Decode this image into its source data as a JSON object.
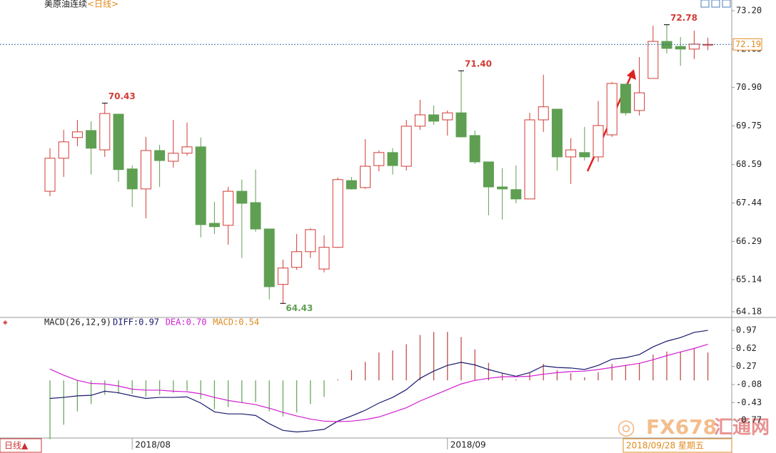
{
  "header": {
    "title": "美原油连续",
    "period": "<日线>"
  },
  "chart_data": [
    {
      "type": "candlestick",
      "categories": [
        null,
        null,
        null,
        null,
        null,
        null,
        "2018/08",
        null,
        null,
        null,
        null,
        null,
        null,
        null,
        null,
        null,
        null,
        null,
        null,
        null,
        null,
        null,
        null,
        null,
        null,
        null,
        null,
        null,
        null,
        "2018/09",
        null,
        null,
        null,
        null,
        null,
        null,
        null,
        null,
        null,
        null,
        null,
        null,
        null,
        null,
        null,
        null,
        null,
        null,
        null
      ],
      "open": [
        67.79,
        68.78,
        69.4,
        69.61,
        69.03,
        70.1,
        68.46,
        67.86,
        69.01,
        68.69,
        68.93,
        69.12,
        66.83,
        66.77,
        67.79,
        67.45,
        66.66,
        65.0,
        65.51,
        65.98,
        65.46,
        66.11,
        68.11,
        67.9,
        68.56,
        68.95,
        68.54,
        69.74,
        70.08,
        69.93,
        70.14,
        69.46,
        68.67,
        67.92,
        67.84,
        67.56,
        69.93,
        70.25,
        68.82,
        68.95,
        68.82,
        69.48,
        71.0,
        70.21,
        71.17,
        72.28,
        72.13,
        72.05,
        72.17
      ],
      "high": [
        69.08,
        69.63,
        69.93,
        69.89,
        70.43,
        70.1,
        68.56,
        69.42,
        69.18,
        69.93,
        69.85,
        69.4,
        67.47,
        67.92,
        68.14,
        68.44,
        66.66,
        65.74,
        66.51,
        66.68,
        66.47,
        68.2,
        68.22,
        69.35,
        69.01,
        69.08,
        69.93,
        70.53,
        70.36,
        70.21,
        71.4,
        69.61,
        68.67,
        68.48,
        68.56,
        70.14,
        71.28,
        70.25,
        69.38,
        69.72,
        70.49,
        71.06,
        71.0,
        71.81,
        72.75,
        72.78,
        72.41,
        72.6,
        72.39
      ],
      "low": [
        67.64,
        68.22,
        69.14,
        68.29,
        68.82,
        68.07,
        67.32,
        66.98,
        67.92,
        68.5,
        68.86,
        66.41,
        66.51,
        66.19,
        65.79,
        66.58,
        64.55,
        64.43,
        65.44,
        65.79,
        65.36,
        66.09,
        67.84,
        67.86,
        68.39,
        68.29,
        68.41,
        69.63,
        69.78,
        69.46,
        69.4,
        68.61,
        67.07,
        66.94,
        67.43,
        67.56,
        69.57,
        68.41,
        68.01,
        68.71,
        68.67,
        69.42,
        70.06,
        70.06,
        71.17,
        71.92,
        71.55,
        71.75,
        72.02
      ],
      "close": [
        68.78,
        69.27,
        69.57,
        69.08,
        70.12,
        68.44,
        67.86,
        69.01,
        68.71,
        68.93,
        69.12,
        66.79,
        66.73,
        67.79,
        67.43,
        66.66,
        64.93,
        65.49,
        65.98,
        66.64,
        66.11,
        68.14,
        67.86,
        68.54,
        68.95,
        68.56,
        69.74,
        70.08,
        69.89,
        70.14,
        69.42,
        68.67,
        67.92,
        67.86,
        67.56,
        69.93,
        70.32,
        68.82,
        69.03,
        68.82,
        69.76,
        71.02,
        70.14,
        70.74,
        72.28,
        72.07,
        72.05,
        72.2,
        72.19
      ],
      "high_labels": [
        null,
        null,
        null,
        null,
        "70.43",
        null,
        null,
        null,
        null,
        null,
        null,
        null,
        null,
        null,
        null,
        null,
        null,
        null,
        null,
        null,
        null,
        null,
        null,
        null,
        null,
        null,
        null,
        null,
        null,
        null,
        "71.40",
        null,
        null,
        null,
        null,
        null,
        null,
        null,
        null,
        null,
        null,
        null,
        null,
        null,
        null,
        "72.78",
        null,
        null,
        null
      ],
      "low_labels": [
        null,
        null,
        null,
        null,
        null,
        null,
        null,
        null,
        null,
        null,
        null,
        null,
        null,
        null,
        null,
        null,
        null,
        "64.43",
        null,
        null,
        null,
        null,
        null,
        null,
        null,
        null,
        null,
        null,
        null,
        null,
        null,
        null,
        null,
        null,
        null,
        null,
        null,
        null,
        null,
        null,
        null,
        null,
        null,
        null,
        null,
        null,
        null,
        null,
        null
      ],
      "last_price": 72.19,
      "up_color": "#d23b35",
      "down_color": "#5f9f52",
      "ylim": [
        64.18,
        73.2
      ],
      "yticks": [
        {
          "value": 73.2,
          "label": "73.20"
        },
        72.05,
        {
          "value": 70.9,
          "label": "70.90"
        },
        69.75,
        68.59,
        67.44,
        66.29,
        65.14,
        64.18
      ]
    },
    {
      "type": "macd",
      "title": "MACD(26,12,9)",
      "series": [
        {
          "name": "DIFF:0.97",
          "color": "#1a1a6e",
          "values": [
            -0.35,
            -0.33,
            -0.3,
            -0.29,
            -0.21,
            -0.24,
            -0.3,
            -0.35,
            -0.33,
            -0.33,
            -0.32,
            -0.44,
            -0.61,
            -0.65,
            -0.65,
            -0.68,
            -0.84,
            -0.97,
            -1.0,
            -0.98,
            -0.95,
            -0.79,
            -0.69,
            -0.58,
            -0.44,
            -0.33,
            -0.18,
            0.04,
            0.18,
            0.29,
            0.35,
            0.3,
            0.21,
            0.14,
            0.08,
            0.15,
            0.28,
            0.25,
            0.24,
            0.21,
            0.29,
            0.41,
            0.44,
            0.5,
            0.65,
            0.76,
            0.83,
            0.93,
            0.97
          ]
        },
        {
          "name": "DEA:0.70",
          "color": "#d21fd2",
          "values": [
            0.22,
            0.1,
            0.0,
            -0.06,
            -0.07,
            -0.11,
            -0.17,
            -0.19,
            -0.19,
            -0.21,
            -0.22,
            -0.26,
            -0.33,
            -0.39,
            -0.43,
            -0.47,
            -0.54,
            -0.62,
            -0.69,
            -0.75,
            -0.79,
            -0.8,
            -0.79,
            -0.76,
            -0.71,
            -0.62,
            -0.53,
            -0.4,
            -0.29,
            -0.18,
            -0.07,
            0.0,
            0.04,
            0.07,
            0.07,
            0.08,
            0.12,
            0.15,
            0.17,
            0.18,
            0.21,
            0.25,
            0.29,
            0.33,
            0.4,
            0.48,
            0.55,
            0.62,
            0.7
          ]
        },
        {
          "name": "MACD:0.54",
          "color": "#e08a1e",
          "values": [
            -1.14,
            -0.86,
            -0.6,
            -0.46,
            -0.28,
            -0.26,
            -0.26,
            -0.32,
            -0.28,
            -0.24,
            -0.2,
            -0.36,
            -0.56,
            -0.52,
            -0.44,
            -0.42,
            -0.6,
            -0.7,
            -0.62,
            -0.46,
            -0.32,
            0.02,
            0.2,
            0.36,
            0.54,
            0.58,
            0.7,
            0.88,
            0.94,
            0.94,
            0.84,
            0.6,
            0.34,
            0.14,
            0.02,
            0.14,
            0.32,
            0.2,
            0.14,
            0.06,
            0.16,
            0.32,
            0.3,
            0.34,
            0.5,
            0.56,
            0.56,
            0.62,
            0.54
          ]
        }
      ],
      "up_color": "#c0504d",
      "down_color": "#6aa85e",
      "ylim": [
        -1.09,
        1.04
      ],
      "yticks": [
        0.97,
        0.62,
        0.27,
        -0.08,
        -0.43,
        -0.77
      ]
    }
  ],
  "footer": {
    "period_button": "日线▲",
    "date": "2018/09/28 星期五",
    "watermark_brand": "FX678",
    "watermark_name": "汇通网"
  }
}
